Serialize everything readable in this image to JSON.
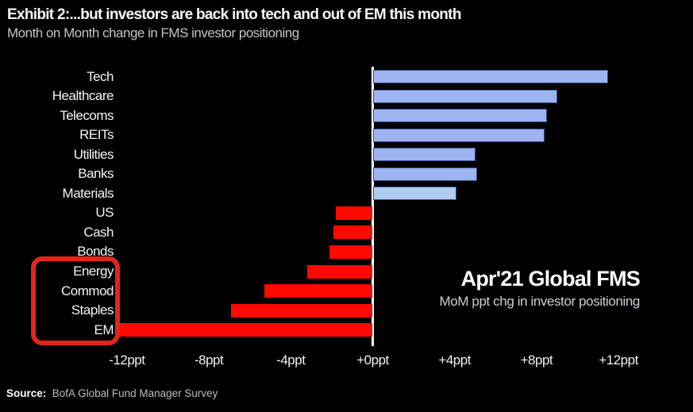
{
  "header": {
    "title": "Exhibit 2:...but investors are back into tech and out of EM this month",
    "subtitle": "Month on Month change in FMS investor positioning"
  },
  "annotation": {
    "line1": "Apr'21 Global FMS",
    "line2": "MoM ppt chg in investor positioning"
  },
  "source": {
    "label": "Source:",
    "text": "BofA Global Fund Manager Survey"
  },
  "colors": {
    "background": "#000000",
    "positive_bar": "#9db4f0",
    "positive_bar_light": "#aecdf0",
    "bar_border": "#33518f",
    "negative_bar": "#fe0800",
    "highlight_box": "#e1251b",
    "axis_line": "#ffffff",
    "label_text": "#f2f3f5",
    "subtitle_text": "#bfc4ca"
  },
  "chart_data": {
    "type": "bar",
    "orientation": "horizontal",
    "unit": "ppt",
    "title": "Month on Month change in FMS investor positioning",
    "categories": [
      "Tech",
      "Healthcare",
      "Telecoms",
      "REITs",
      "Utilities",
      "Banks",
      "Materials",
      "US",
      "Cash",
      "Bonds",
      "Energy",
      "Commod",
      "Staples",
      "EM"
    ],
    "values": [
      11.5,
      9.0,
      8.5,
      8.4,
      5.0,
      5.1,
      4.1,
      -1.8,
      -1.9,
      -2.1,
      -3.2,
      -5.3,
      -6.9,
      -12.4
    ],
    "bar_styles": [
      "blue",
      "blue",
      "blue",
      "blue",
      "blue",
      "blue",
      "lightblue",
      "red",
      "red",
      "red",
      "red",
      "red",
      "red",
      "red"
    ],
    "tick_labels": [
      "-12ppt",
      "-8ppt",
      "-4ppt",
      "+0ppt",
      "+4ppt",
      "+8ppt",
      "+12ppt"
    ],
    "tick_values": [
      -12,
      -8,
      -4,
      0,
      4,
      8,
      12
    ],
    "xlim": [
      -12.5,
      12.9
    ],
    "grid": false,
    "legend": "none",
    "highlighted_categories": [
      "Energy",
      "Commod",
      "Staples",
      "EM"
    ]
  }
}
